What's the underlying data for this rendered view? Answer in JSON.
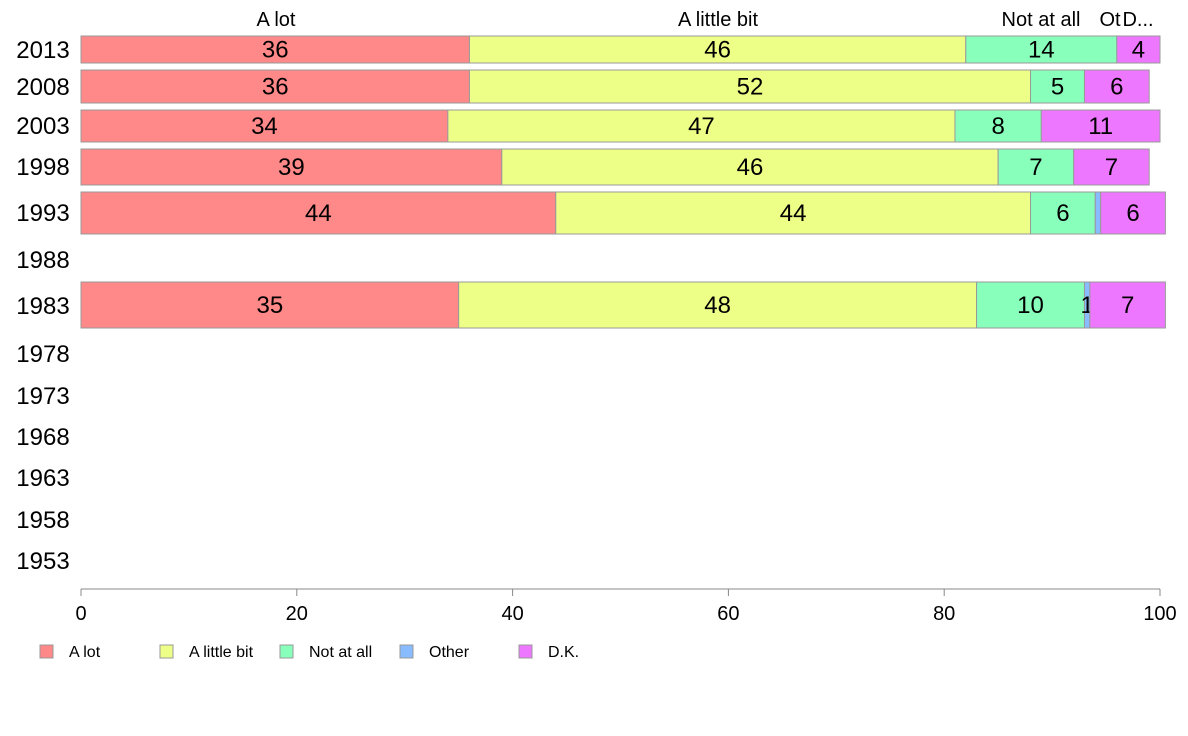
{
  "chart_data": {
    "type": "bar",
    "orientation": "horizontal",
    "stacked": true,
    "categories": [
      "2013",
      "2008",
      "2003",
      "1998",
      "1993",
      "1988",
      "1983",
      "1978",
      "1973",
      "1968",
      "1963",
      "1958",
      "1953"
    ],
    "series": [
      {
        "name": "A lot",
        "color": "#ff8888",
        "values": [
          36,
          36,
          34,
          39,
          44,
          null,
          35,
          null,
          null,
          null,
          null,
          null,
          null
        ]
      },
      {
        "name": "A little bit",
        "color": "#eeff88",
        "values": [
          46,
          52,
          47,
          46,
          44,
          null,
          48,
          null,
          null,
          null,
          null,
          null,
          null
        ]
      },
      {
        "name": "Not at all",
        "color": "#88ffbb",
        "values": [
          14,
          5,
          8,
          7,
          6,
          null,
          10,
          null,
          null,
          null,
          null,
          null,
          null
        ]
      },
      {
        "name": "Other",
        "color": "#88bbff",
        "values": [
          0,
          0,
          0,
          0,
          0.5,
          null,
          0.5,
          null,
          null,
          null,
          null,
          null,
          null
        ]
      },
      {
        "name": "D.K.",
        "color": "#ee77ff",
        "values": [
          4,
          6,
          11,
          7,
          6,
          null,
          7,
          null,
          null,
          null,
          null,
          null,
          null
        ]
      }
    ],
    "bar_labels": [
      [
        "36",
        "46",
        "14",
        "",
        "4"
      ],
      [
        "36",
        "52",
        "5",
        "",
        "6"
      ],
      [
        "34",
        "47",
        "8",
        "",
        "11"
      ],
      [
        "39",
        "46",
        "7",
        "",
        "7"
      ],
      [
        "44",
        "44",
        "6",
        "",
        "6"
      ],
      null,
      [
        "35",
        "48",
        "10",
        "1",
        "7"
      ],
      null,
      null,
      null,
      null,
      null,
      null
    ],
    "top_labels": [
      "A lot",
      "A little bit",
      "Not at all",
      "Ot",
      "D..."
    ],
    "xlim": [
      0,
      100
    ],
    "xticks": [
      "0",
      "20",
      "40",
      "60",
      "80",
      "100"
    ],
    "xlabel": "",
    "ylabel": "",
    "title": "",
    "grid": false,
    "legend_position": "bottom-left"
  }
}
